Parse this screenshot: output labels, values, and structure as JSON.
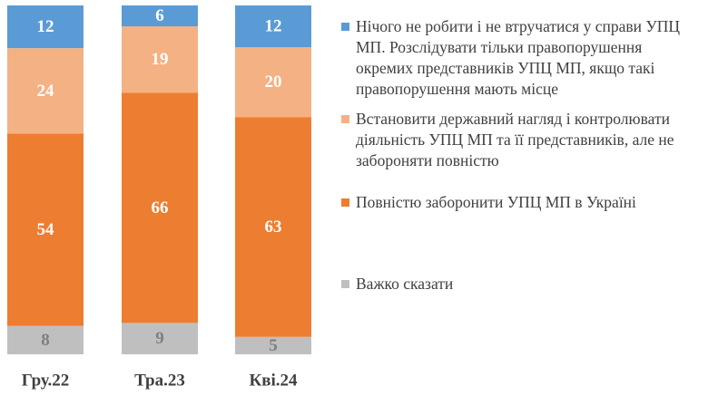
{
  "chart_data": {
    "type": "bar",
    "stacked": true,
    "categories": [
      "Гру.22",
      "Тра.23",
      "Кві.24"
    ],
    "series": [
      {
        "name": "Важко сказати",
        "color": "#bfbfbf",
        "label_color": "#7f7f7f",
        "values": [
          8,
          9,
          5
        ]
      },
      {
        "name": "Повністю заборонити УПЦ МП в Україні",
        "color": "#ed7d31",
        "label_color": "#ffffff",
        "values": [
          54,
          66,
          63
        ]
      },
      {
        "name": "Встановити державний нагляд і контролювати діяльність УПЦ МП та її представників, але не забороняти повністю",
        "color": "#f4b183",
        "label_color": "#ffffff",
        "values": [
          24,
          19,
          20
        ]
      },
      {
        "name": "Нічого не робити і не втручатися у справи УПЦ МП. Розслідувати тільки правопорушення окремих представників УПЦ МП, якщо такі правопорушення мають місце",
        "color": "#5b9bd5",
        "label_color": "#ffffff",
        "values": [
          12,
          6,
          12
        ]
      }
    ],
    "legend_position": "right",
    "grid": false
  }
}
